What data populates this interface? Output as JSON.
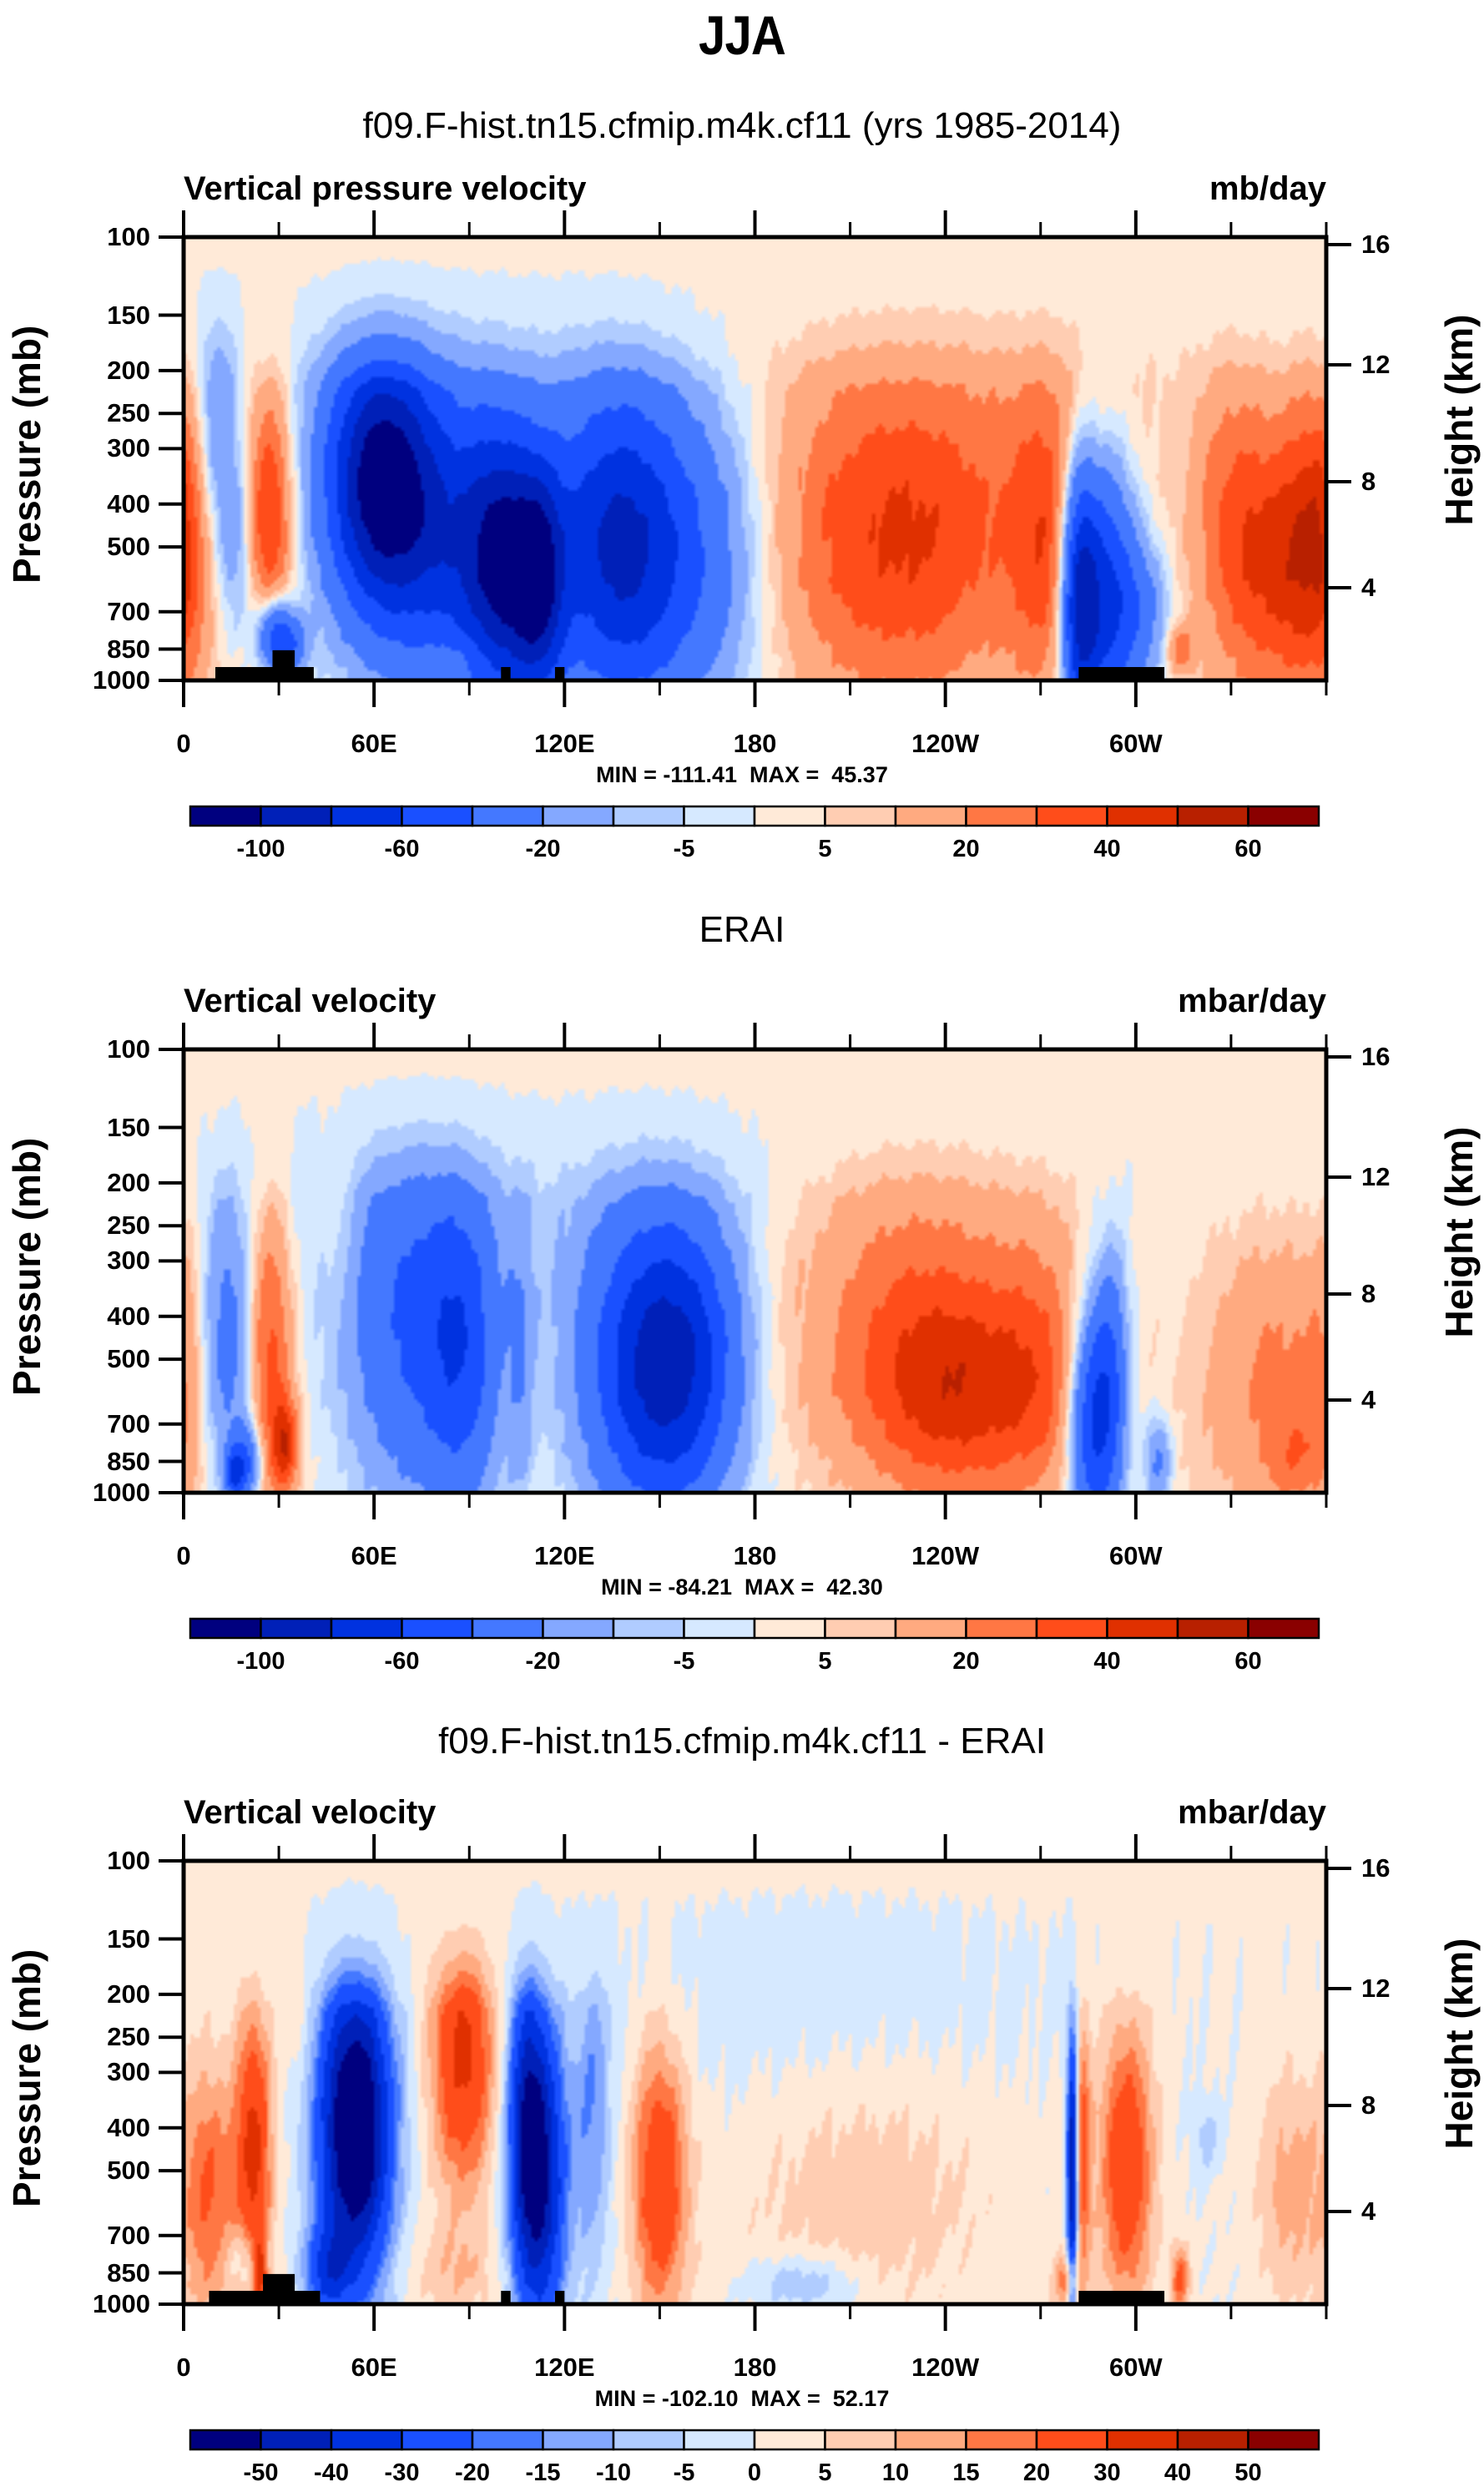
{
  "figure": {
    "main_title": "JJA"
  },
  "chart_data": [
    {
      "type": "heatmap",
      "id": "model",
      "title": "f09.F-hist.tn15.cfmip.m4k.cf11 (yrs 1985-2014)",
      "left_string": "Vertical pressure velocity",
      "right_string": "mb/day",
      "xlabel": "",
      "ylabel": "Pressure (mb)",
      "ylabel_right": "Height (km)",
      "x_range": [
        0,
        360
      ],
      "y_range_mb": [
        1000,
        100
      ],
      "x_ticks": [
        {
          "value": 0,
          "label": "0"
        },
        {
          "value": 60,
          "label": "60E"
        },
        {
          "value": 120,
          "label": "120E"
        },
        {
          "value": 180,
          "label": "180"
        },
        {
          "value": 240,
          "label": "120W"
        },
        {
          "value": 300,
          "label": "60W"
        }
      ],
      "y_ticks": [
        100,
        150,
        200,
        250,
        300,
        400,
        500,
        700,
        850,
        1000
      ],
      "y_ticks_right": [
        {
          "value": 16,
          "label": "16"
        },
        {
          "value": 12,
          "label": "12"
        },
        {
          "value": 8,
          "label": "8"
        },
        {
          "value": 4,
          "label": "4"
        }
      ],
      "stats": "MIN = -111.41  MAX =  45.37",
      "min": -111.41,
      "max": 45.37,
      "colorbar": {
        "levels": [
          -100,
          -80,
          -60,
          -40,
          -20,
          -10,
          -5,
          0,
          5,
          10,
          20,
          30,
          40,
          50,
          60
        ],
        "labeled": [
          -100,
          -60,
          -20,
          -5,
          5,
          20,
          40,
          60
        ],
        "colors": [
          "#00007f",
          "#0020b8",
          "#0032e0",
          "#1a50ff",
          "#4478ff",
          "#84a8ff",
          "#b0ccff",
          "#d6e9ff",
          "#ffead8",
          "#ffcdb2",
          "#ffaa80",
          "#ff7744",
          "#ff4d1a",
          "#e03000",
          "#b82000",
          "#8a0000"
        ]
      },
      "features": [
        {
          "lon": 0,
          "p": 450,
          "amp": 30,
          "wlon": 9,
          "wp": 350
        },
        {
          "lon": 10,
          "p": 300,
          "amp": -30,
          "wlon": 5,
          "wp": 250
        },
        {
          "lon": 17,
          "p": 500,
          "amp": -18,
          "wlon": 4,
          "wp": 200
        },
        {
          "lon": 27,
          "p": 420,
          "amp": 42,
          "wlon": 5,
          "wp": 250
        },
        {
          "lon": 28,
          "p": 780,
          "amp": -45,
          "wlon": 4,
          "wp": 120
        },
        {
          "lon": 33,
          "p": 830,
          "amp": -40,
          "wlon": 4,
          "wp": 100
        },
        {
          "lon": 62,
          "p": 360,
          "amp": -110,
          "wlon": 12,
          "wp": 230
        },
        {
          "lon": 85,
          "p": 500,
          "amp": -55,
          "wlon": 14,
          "wp": 350
        },
        {
          "lon": 100,
          "p": 550,
          "amp": -75,
          "wlon": 8,
          "wp": 350
        },
        {
          "lon": 112,
          "p": 600,
          "amp": -80,
          "wlon": 6,
          "wp": 320
        },
        {
          "lon": 135,
          "p": 500,
          "amp": -70,
          "wlon": 14,
          "wp": 380
        },
        {
          "lon": 158,
          "p": 520,
          "amp": -40,
          "wlon": 18,
          "wp": 400
        },
        {
          "lon": 95,
          "p": 200,
          "amp": -8,
          "wlon": 50,
          "wp": 180
        },
        {
          "lon": 88,
          "p": 880,
          "amp": 8,
          "wlon": 6,
          "wp": 60
        },
        {
          "lon": 225,
          "p": 500,
          "amp": 36,
          "wlon": 30,
          "wp": 420
        },
        {
          "lon": 240,
          "p": 250,
          "amp": 8,
          "wlon": 60,
          "wp": 250
        },
        {
          "lon": 272,
          "p": 500,
          "amp": 25,
          "wlon": 8,
          "wp": 400
        },
        {
          "lon": 282,
          "p": 650,
          "amp": -75,
          "wlon": 4,
          "wp": 400
        },
        {
          "lon": 290,
          "p": 650,
          "amp": -70,
          "wlon": 7,
          "wp": 400
        },
        {
          "lon": 302,
          "p": 700,
          "amp": -25,
          "wlon": 6,
          "wp": 200
        },
        {
          "lon": 314,
          "p": 850,
          "amp": 25,
          "wlon": 3,
          "wp": 80
        },
        {
          "lon": 345,
          "p": 550,
          "amp": 36,
          "wlon": 14,
          "wp": 380
        },
        {
          "lon": 330,
          "p": 400,
          "amp": 15,
          "wlon": 8,
          "wp": 300
        }
      ],
      "land": [
        {
          "lon0": 10,
          "lon1": 41,
          "p_top": 933
        },
        {
          "lon0": 28,
          "lon1": 35,
          "p_top": 855
        },
        {
          "lon0": 100,
          "lon1": 103,
          "p_top": 933
        },
        {
          "lon0": 117,
          "lon1": 120,
          "p_top": 933
        },
        {
          "lon0": 282,
          "lon1": 309,
          "p_top": 933
        }
      ]
    },
    {
      "type": "heatmap",
      "id": "obs",
      "title": "ERAI",
      "left_string": "Vertical velocity",
      "right_string": "mbar/day",
      "xlabel": "",
      "ylabel": "Pressure (mb)",
      "ylabel_right": "Height (km)",
      "x_range": [
        0,
        360
      ],
      "y_range_mb": [
        1000,
        100
      ],
      "x_ticks": [
        {
          "value": 0,
          "label": "0"
        },
        {
          "value": 60,
          "label": "60E"
        },
        {
          "value": 120,
          "label": "120E"
        },
        {
          "value": 180,
          "label": "180"
        },
        {
          "value": 240,
          "label": "120W"
        },
        {
          "value": 300,
          "label": "60W"
        }
      ],
      "y_ticks": [
        100,
        150,
        200,
        250,
        300,
        400,
        500,
        700,
        850,
        1000
      ],
      "y_ticks_right": [
        {
          "value": 16,
          "label": "16"
        },
        {
          "value": 12,
          "label": "12"
        },
        {
          "value": 8,
          "label": "8"
        },
        {
          "value": 4,
          "label": "4"
        }
      ],
      "stats": "MIN = -84.21  MAX =  42.30",
      "min": -84.21,
      "max": 42.3,
      "colorbar": {
        "levels": [
          -100,
          -80,
          -60,
          -40,
          -20,
          -10,
          -5,
          0,
          5,
          10,
          20,
          30,
          40,
          50,
          60
        ],
        "labeled": [
          -100,
          -60,
          -20,
          -5,
          5,
          20,
          40,
          60
        ],
        "colors": [
          "#00007f",
          "#0020b8",
          "#0032e0",
          "#1a50ff",
          "#4478ff",
          "#84a8ff",
          "#b0ccff",
          "#d6e9ff",
          "#ffead8",
          "#ffcdb2",
          "#ffaa80",
          "#ff7744",
          "#ff4d1a",
          "#e03000",
          "#b82000",
          "#8a0000"
        ]
      },
      "features": [
        {
          "lon": 0,
          "p": 500,
          "amp": 8,
          "wlon": 4,
          "wp": 400
        },
        {
          "lon": 14,
          "p": 480,
          "amp": -32,
          "wlon": 6,
          "wp": 330
        },
        {
          "lon": 16,
          "p": 900,
          "amp": -55,
          "wlon": 2,
          "wp": 80
        },
        {
          "lon": 27,
          "p": 470,
          "amp": 34,
          "wlon": 5,
          "wp": 330
        },
        {
          "lon": 32,
          "p": 780,
          "amp": 38,
          "wlon": 3,
          "wp": 150
        },
        {
          "lon": 20,
          "p": 850,
          "amp": -40,
          "wlon": 3,
          "wp": 120
        },
        {
          "lon": 48,
          "p": 230,
          "amp": 8,
          "wlon": 4,
          "wp": 80
        },
        {
          "lon": 72,
          "p": 420,
          "amp": -40,
          "wlon": 14,
          "wp": 380
        },
        {
          "lon": 88,
          "p": 480,
          "amp": -40,
          "wlon": 8,
          "wp": 350
        },
        {
          "lon": 106,
          "p": 500,
          "amp": -15,
          "wlon": 3,
          "wp": 350
        },
        {
          "lon": 148,
          "p": 520,
          "amp": -75,
          "wlon": 15,
          "wp": 380
        },
        {
          "lon": 160,
          "p": 500,
          "amp": -30,
          "wlon": 12,
          "wp": 300
        },
        {
          "lon": 100,
          "p": 200,
          "amp": -6,
          "wlon": 80,
          "wp": 200
        },
        {
          "lon": 230,
          "p": 380,
          "amp": 25,
          "wlon": 28,
          "wp": 300
        },
        {
          "lon": 245,
          "p": 620,
          "amp": 32,
          "wlon": 22,
          "wp": 300
        },
        {
          "lon": 270,
          "p": 500,
          "amp": 14,
          "wlon": 10,
          "wp": 350
        },
        {
          "lon": 286,
          "p": 700,
          "amp": -60,
          "wlon": 5,
          "wp": 350
        },
        {
          "lon": 292,
          "p": 550,
          "amp": -40,
          "wlon": 4,
          "wp": 300
        },
        {
          "lon": 307,
          "p": 850,
          "amp": -25,
          "wlon": 3,
          "wp": 150
        },
        {
          "lon": 345,
          "p": 550,
          "amp": 22,
          "wlon": 18,
          "wp": 400
        },
        {
          "lon": 350,
          "p": 820,
          "amp": 14,
          "wlon": 6,
          "wp": 150
        }
      ],
      "land": []
    },
    {
      "type": "heatmap",
      "id": "diff",
      "title": "f09.F-hist.tn15.cfmip.m4k.cf11 - ERAI",
      "left_string": "Vertical velocity",
      "right_string": "mbar/day",
      "xlabel": "",
      "ylabel": "Pressure (mb)",
      "ylabel_right": "Height (km)",
      "x_range": [
        0,
        360
      ],
      "y_range_mb": [
        1000,
        100
      ],
      "x_ticks": [
        {
          "value": 0,
          "label": "0"
        },
        {
          "value": 60,
          "label": "60E"
        },
        {
          "value": 120,
          "label": "120E"
        },
        {
          "value": 180,
          "label": "180"
        },
        {
          "value": 240,
          "label": "120W"
        },
        {
          "value": 300,
          "label": "60W"
        }
      ],
      "y_ticks": [
        100,
        150,
        200,
        250,
        300,
        400,
        500,
        700,
        850,
        1000
      ],
      "y_ticks_right": [
        {
          "value": 16,
          "label": "16"
        },
        {
          "value": 12,
          "label": "12"
        },
        {
          "value": 8,
          "label": "8"
        },
        {
          "value": 4,
          "label": "4"
        }
      ],
      "stats": "MIN = -102.10  MAX =  52.17",
      "min": -102.1,
      "max": 52.17,
      "colorbar": {
        "levels": [
          -50,
          -40,
          -30,
          -20,
          -15,
          -10,
          -5,
          0,
          5,
          10,
          15,
          20,
          30,
          40,
          50
        ],
        "labeled": [
          -50,
          -40,
          -30,
          -20,
          -15,
          -10,
          -5,
          0,
          5,
          10,
          15,
          20,
          30,
          40,
          50
        ],
        "colors": [
          "#00007f",
          "#0020b8",
          "#0032e0",
          "#1a50ff",
          "#4478ff",
          "#84a8ff",
          "#b0ccff",
          "#d6e9ff",
          "#ffead8",
          "#ffcdb2",
          "#ffaa80",
          "#ff7744",
          "#ff4d1a",
          "#e03000",
          "#b82000",
          "#8a0000"
        ]
      },
      "features": [
        {
          "lon": 8,
          "p": 560,
          "amp": 20,
          "wlon": 6,
          "wp": 350
        },
        {
          "lon": 22,
          "p": 450,
          "amp": 32,
          "wlon": 4,
          "wp": 300
        },
        {
          "lon": 20,
          "p": 800,
          "amp": -12,
          "wlon": 4,
          "wp": 100
        },
        {
          "lon": 24,
          "p": 850,
          "amp": 30,
          "wlon": 1.5,
          "wp": 120
        },
        {
          "lon": 35,
          "p": 220,
          "amp": 6,
          "wlon": 3,
          "wp": 60
        },
        {
          "lon": 54,
          "p": 400,
          "amp": -70,
          "wlon": 8,
          "wp": 300
        },
        {
          "lon": 45,
          "p": 850,
          "amp": -25,
          "wlon": 5,
          "wp": 150
        },
        {
          "lon": 88,
          "p": 270,
          "amp": 32,
          "wlon": 7,
          "wp": 180
        },
        {
          "lon": 112,
          "p": 520,
          "amp": -50,
          "wlon": 6,
          "wp": 400
        },
        {
          "lon": 108,
          "p": 350,
          "amp": -25,
          "wlon": 4,
          "wp": 250
        },
        {
          "lon": 129,
          "p": 380,
          "amp": -15,
          "wlon": 4,
          "wp": 300
        },
        {
          "lon": 150,
          "p": 520,
          "amp": 28,
          "wlon": 6,
          "wp": 350
        },
        {
          "lon": 85,
          "p": 850,
          "amp": 8,
          "wlon": 10,
          "wp": 150
        },
        {
          "lon": 195,
          "p": 900,
          "amp": -12,
          "wlon": 12,
          "wp": 100
        },
        {
          "lon": 215,
          "p": 550,
          "amp": 8,
          "wlon": 30,
          "wp": 350
        },
        {
          "lon": 200,
          "p": 180,
          "amp": -4,
          "wlon": 50,
          "wp": 150
        },
        {
          "lon": 280,
          "p": 500,
          "amp": -55,
          "wlon": 1.2,
          "wp": 350
        },
        {
          "lon": 283,
          "p": 450,
          "amp": 22,
          "wlon": 2,
          "wp": 300
        },
        {
          "lon": 297,
          "p": 480,
          "amp": 28,
          "wlon": 6,
          "wp": 330
        },
        {
          "lon": 278,
          "p": 880,
          "amp": 18,
          "wlon": 3,
          "wp": 100
        },
        {
          "lon": 314,
          "p": 880,
          "amp": 22,
          "wlon": 2,
          "wp": 120
        },
        {
          "lon": 349,
          "p": 550,
          "amp": 12,
          "wlon": 8,
          "wp": 300
        },
        {
          "lon": 322,
          "p": 420,
          "amp": -8,
          "wlon": 3,
          "wp": 60
        }
      ],
      "land": [
        {
          "lon0": 8,
          "lon1": 43,
          "p_top": 933
        },
        {
          "lon0": 25,
          "lon1": 35,
          "p_top": 855
        },
        {
          "lon0": 100,
          "lon1": 103,
          "p_top": 933
        },
        {
          "lon0": 117,
          "lon1": 120,
          "p_top": 933
        },
        {
          "lon0": 282,
          "lon1": 309,
          "p_top": 933
        }
      ]
    }
  ]
}
